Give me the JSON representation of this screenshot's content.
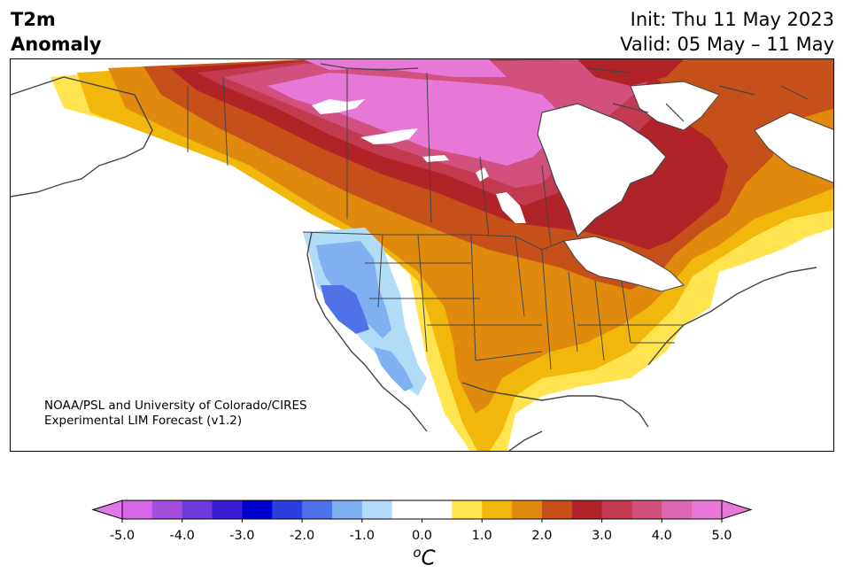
{
  "header": {
    "title_line1": "T2m",
    "title_line2": "Anomaly",
    "init_text": "Init: Thu 11 May 2023",
    "valid_text": "Valid: 05 May – 11 May"
  },
  "map": {
    "credit_line1": "NOAA/PSL and University of Colorado/CIRES",
    "credit_line2": "Experimental LIM Forecast (v1.2)",
    "region": "North America",
    "variable": "2m temperature anomaly"
  },
  "colorbar": {
    "units_base": "C",
    "units_prefix": "o",
    "ticks": [
      "-5.0",
      "-4.0",
      "-3.0",
      "-2.0",
      "-1.0",
      "0.0",
      "1.0",
      "2.0",
      "3.0",
      "4.0",
      "5.0"
    ],
    "colors": [
      "#d766e6",
      "#a34fdc",
      "#6a3adb",
      "#3a1ed4",
      "#0000cc",
      "#2a3fdc",
      "#4f72e6",
      "#7fb0f2",
      "#b0dcf8",
      "#ffffff",
      "#ffffff",
      "#ffe34f",
      "#f2b70c",
      "#df8a0c",
      "#c6501a",
      "#b02428",
      "#c23a50",
      "#d1507e",
      "#dd68b4",
      "#e878d8"
    ],
    "min_color": "#e078e8",
    "max_color": "#e878d8"
  }
}
